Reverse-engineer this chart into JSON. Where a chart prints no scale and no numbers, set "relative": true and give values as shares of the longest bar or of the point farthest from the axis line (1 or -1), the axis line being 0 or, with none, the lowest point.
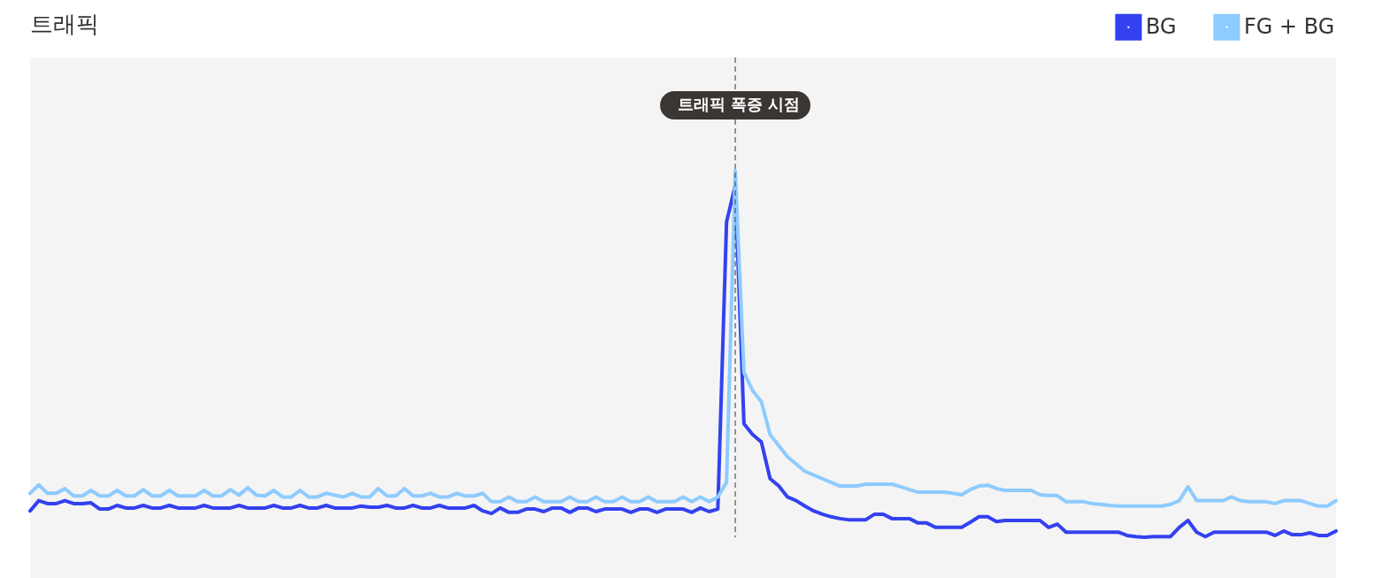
{
  "chart_data": {
    "type": "line",
    "title": "트래픽",
    "relative": true,
    "legend": "top right",
    "marker": "none",
    "line_style": "solid",
    "categories": [
      null,
      null,
      null,
      null,
      null,
      null,
      null,
      null,
      null,
      null,
      null,
      null,
      null,
      null,
      null,
      null,
      null,
      null,
      null,
      null,
      null,
      null,
      null,
      null,
      null,
      null,
      null,
      null,
      null,
      null,
      null,
      null,
      null,
      null,
      null,
      null,
      null,
      null,
      null,
      null,
      null,
      null,
      null,
      null,
      null,
      null,
      null,
      null,
      null,
      null,
      null,
      null,
      null,
      null,
      null,
      null,
      null,
      null,
      null,
      null,
      null,
      null,
      null,
      null,
      null,
      null,
      null,
      null,
      null,
      null,
      null,
      null,
      null,
      null,
      null,
      null,
      null,
      null,
      null,
      null,
      null,
      null,
      null,
      null,
      null,
      null,
      null,
      null,
      null,
      null,
      null,
      null,
      null,
      null,
      null,
      null,
      null,
      null,
      null,
      null,
      null,
      null,
      null,
      null,
      null,
      null,
      null,
      null,
      null,
      null,
      null,
      null,
      null,
      null,
      null,
      null,
      null,
      null,
      null,
      null,
      null,
      null,
      null,
      null,
      null,
      null,
      null,
      null,
      null,
      null,
      null,
      null,
      null,
      null,
      null,
      null,
      null,
      null,
      null,
      null,
      null,
      null,
      null,
      null,
      null,
      null,
      null,
      null,
      null,
      null,
      null
    ],
    "series": [
      {
        "name": "BG",
        "color": "#3341f0",
        "values": [
          0.072,
          0.1,
          0.092,
          0.092,
          0.1,
          0.092,
          0.092,
          0.094,
          0.077,
          0.077,
          0.087,
          0.08,
          0.08,
          0.087,
          0.08,
          0.08,
          0.087,
          0.08,
          0.08,
          0.08,
          0.087,
          0.08,
          0.08,
          0.08,
          0.087,
          0.08,
          0.08,
          0.08,
          0.087,
          0.08,
          0.08,
          0.087,
          0.08,
          0.08,
          0.087,
          0.08,
          0.08,
          0.08,
          0.085,
          0.082,
          0.082,
          0.087,
          0.08,
          0.08,
          0.087,
          0.08,
          0.08,
          0.087,
          0.08,
          0.08,
          0.08,
          0.087,
          0.072,
          0.065,
          0.08,
          0.068,
          0.068,
          0.077,
          0.077,
          0.07,
          0.08,
          0.08,
          0.068,
          0.08,
          0.08,
          0.07,
          0.077,
          0.077,
          0.077,
          0.068,
          0.077,
          0.077,
          0.068,
          0.077,
          0.077,
          0.077,
          0.068,
          0.08,
          0.07,
          0.077,
          0.86,
          0.96,
          0.31,
          0.28,
          0.26,
          0.16,
          0.14,
          0.11,
          0.1,
          0.085,
          0.072,
          0.063,
          0.056,
          0.051,
          0.048,
          0.048,
          0.048,
          0.063,
          0.063,
          0.051,
          0.051,
          0.051,
          0.039,
          0.039,
          0.027,
          0.027,
          0.027,
          0.027,
          0.041,
          0.056,
          0.056,
          0.043,
          0.046,
          0.046,
          0.046,
          0.046,
          0.046,
          0.027,
          0.036,
          0.014,
          0.014,
          0.014,
          0.014,
          0.014,
          0.014,
          0.014,
          0.005,
          0.002,
          0,
          0.002,
          0.002,
          0.002,
          0.027,
          0.046,
          0.014,
          0.002,
          0.014,
          0.014,
          0.014,
          0.014,
          0.014,
          0.014,
          0.014,
          0.005,
          0.017,
          0.007,
          0.007,
          0.012,
          0.005,
          0.005,
          0.017
        ]
      },
      {
        "name": "FG + BG",
        "color": "#8ecbff",
        "values": [
          0.12,
          0.143,
          0.12,
          0.12,
          0.133,
          0.113,
          0.113,
          0.128,
          0.113,
          0.113,
          0.128,
          0.113,
          0.113,
          0.13,
          0.113,
          0.113,
          0.128,
          0.113,
          0.113,
          0.113,
          0.128,
          0.113,
          0.113,
          0.13,
          0.115,
          0.135,
          0.115,
          0.113,
          0.128,
          0.11,
          0.11,
          0.128,
          0.11,
          0.11,
          0.12,
          0.115,
          0.11,
          0.12,
          0.11,
          0.11,
          0.133,
          0.113,
          0.113,
          0.133,
          0.113,
          0.113,
          0.12,
          0.11,
          0.11,
          0.12,
          0.113,
          0.113,
          0.12,
          0.097,
          0.097,
          0.11,
          0.097,
          0.097,
          0.11,
          0.097,
          0.097,
          0.097,
          0.11,
          0.097,
          0.097,
          0.11,
          0.097,
          0.097,
          0.11,
          0.097,
          0.097,
          0.11,
          0.097,
          0.097,
          0.097,
          0.11,
          0.097,
          0.11,
          0.097,
          0.11,
          0.15,
          1.0,
          0.45,
          0.4,
          0.37,
          0.28,
          0.25,
          0.22,
          0.2,
          0.18,
          0.17,
          0.16,
          0.15,
          0.14,
          0.14,
          0.14,
          0.145,
          0.145,
          0.145,
          0.145,
          0.138,
          0.13,
          0.123,
          0.123,
          0.123,
          0.123,
          0.12,
          0.116,
          0.13,
          0.14,
          0.142,
          0.133,
          0.128,
          0.128,
          0.128,
          0.128,
          0.116,
          0.114,
          0.114,
          0.097,
          0.097,
          0.097,
          0.092,
          0.09,
          0.087,
          0.085,
          0.085,
          0.085,
          0.085,
          0.085,
          0.085,
          0.09,
          0.1,
          0.138,
          0.1,
          0.1,
          0.1,
          0.1,
          0.11,
          0.1,
          0.097,
          0.097,
          0.097,
          0.092,
          0.1,
          0.1,
          0.1,
          0.092,
          0.085,
          0.085,
          0.1
        ]
      }
    ],
    "annotations": [
      "트래픽 폭증 시점"
    ]
  }
}
